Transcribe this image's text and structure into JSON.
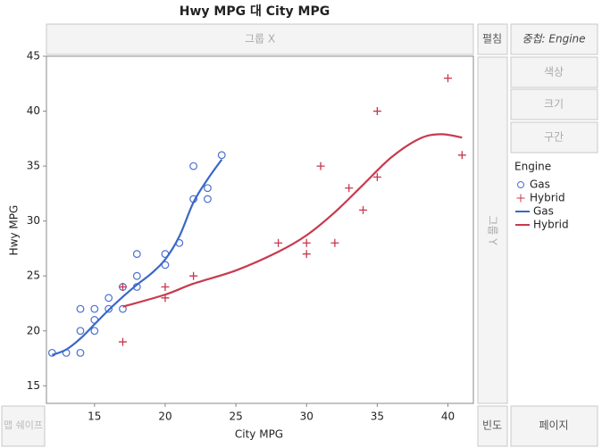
{
  "ui": {
    "group_x": "그룹 X",
    "wrap": "펼침",
    "overlay": "중첩: Engine",
    "color": "색상",
    "size": "크기",
    "interval": "구간",
    "group_y": "그룹 Y",
    "map_shape": "맵 쉐이프",
    "freq": "빈도",
    "page": "페이지"
  },
  "chart_data": {
    "type": "scatter",
    "title": "Hwy MPG 대 City MPG",
    "x_label": "City MPG",
    "y_label": "Hwy MPG",
    "xlim": [
      11.6,
      41.8
    ],
    "ylim": [
      13.4,
      45
    ],
    "xticks": [
      15,
      20,
      25,
      30,
      35,
      40
    ],
    "yticks": [
      15,
      20,
      25,
      30,
      35,
      40,
      45
    ],
    "grid": false,
    "legend_title": "Engine",
    "series": [
      {
        "name": "Gas",
        "color": "#4a6fcf",
        "marker": "circle",
        "x": [
          12,
          13,
          14,
          14,
          14,
          15,
          15,
          15,
          16,
          16,
          17,
          17,
          18,
          18,
          18,
          20,
          20,
          21,
          22,
          22,
          23,
          23,
          24
        ],
        "values": [
          18,
          18,
          18,
          20,
          22,
          20,
          21,
          22,
          22,
          23,
          22,
          24,
          24,
          25,
          27,
          26,
          27,
          28,
          32,
          35,
          32,
          33,
          36
        ]
      },
      {
        "name": "Hybrid",
        "color": "#c8384b",
        "marker": "plus",
        "x": [
          17,
          17,
          20,
          20,
          22,
          28,
          30,
          30,
          31,
          32,
          33,
          34,
          35,
          35,
          40,
          41
        ],
        "values": [
          19,
          24,
          23,
          24,
          25,
          28,
          27,
          28,
          35,
          28,
          33,
          31,
          34,
          40,
          43,
          36
        ]
      },
      {
        "name": "Gas",
        "color": "#3a67c8",
        "marker": "line",
        "x": [
          12,
          13,
          14,
          15,
          16,
          17,
          18,
          19,
          20,
          21,
          22,
          23,
          24
        ],
        "values": [
          17.8,
          18.3,
          19.3,
          20.6,
          21.9,
          23.1,
          24.2,
          25.2,
          26.5,
          28.6,
          31.7,
          33.8,
          35.6
        ]
      },
      {
        "name": "Hybrid",
        "color": "#c83a4e",
        "marker": "line",
        "x": [
          17,
          20,
          22,
          25,
          28,
          30,
          32,
          34,
          36,
          38,
          39.5,
          41
        ],
        "values": [
          22.2,
          23.3,
          24.3,
          25.5,
          27.2,
          28.7,
          30.8,
          33.3,
          35.8,
          37.5,
          37.9,
          37.6
        ]
      }
    ]
  }
}
